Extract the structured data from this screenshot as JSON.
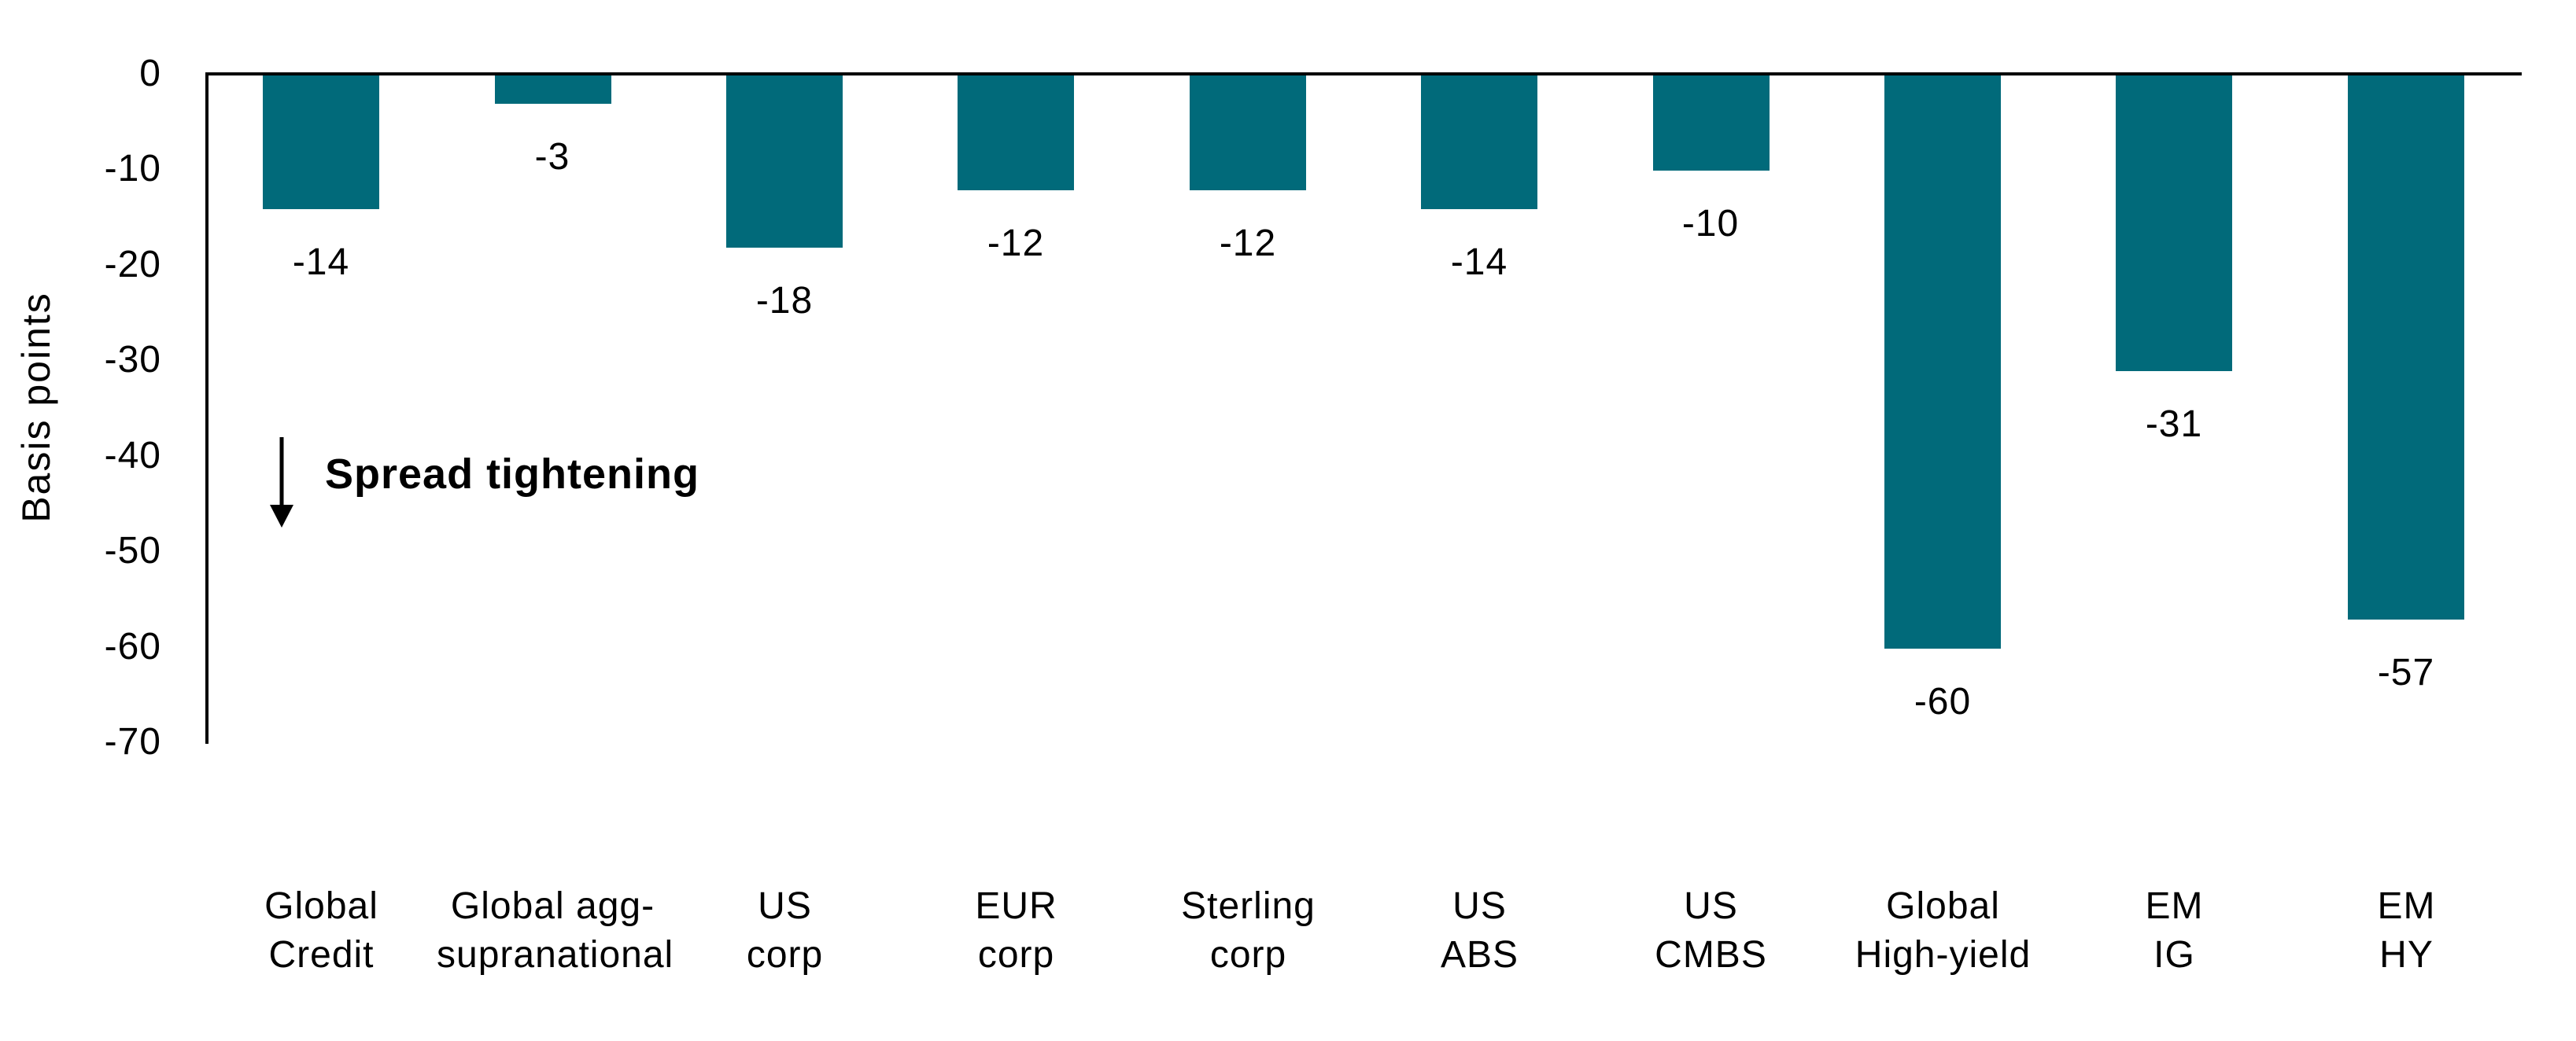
{
  "chart_data": {
    "type": "bar",
    "title": "",
    "ylabel": "Basis points",
    "xlabel": "",
    "categories": [
      [
        "Global",
        "Credit"
      ],
      [
        "Global agg-",
        "supranational"
      ],
      [
        "US",
        "corp"
      ],
      [
        "EUR",
        "corp"
      ],
      [
        "Sterling",
        "corp"
      ],
      [
        "US",
        "ABS"
      ],
      [
        "US",
        "CMBS"
      ],
      [
        "Global",
        "High-yield"
      ],
      [
        "EM",
        "IG"
      ],
      [
        "EM",
        "HY"
      ]
    ],
    "values": [
      -14,
      -3,
      -18,
      -12,
      -12,
      -14,
      -10,
      -60,
      -31,
      -57
    ],
    "data_labels": [
      "-14",
      "-3",
      "-18",
      "-12",
      "-12",
      "-14",
      "-10",
      "-60",
      "-31",
      "-57"
    ],
    "ylim": [
      -70,
      0
    ],
    "yticks": [
      {
        "label": "0",
        "value": 0
      },
      {
        "label": "-10",
        "value": -10
      },
      {
        "label": "-20",
        "value": -20
      },
      {
        "label": "-30",
        "value": -30
      },
      {
        "label": "-40",
        "value": -40
      },
      {
        "label": "-50",
        "value": -50
      },
      {
        "label": "-60",
        "value": -60
      },
      {
        "label": "-70",
        "value": -70
      }
    ],
    "grid": "off",
    "legend": "none",
    "annotation": {
      "icon": "down-arrow",
      "text": "Spread tightening"
    },
    "colors": {
      "bar": "#016a7a",
      "axis": "#000000",
      "text": "#000000",
      "background": "#ffffff"
    }
  }
}
